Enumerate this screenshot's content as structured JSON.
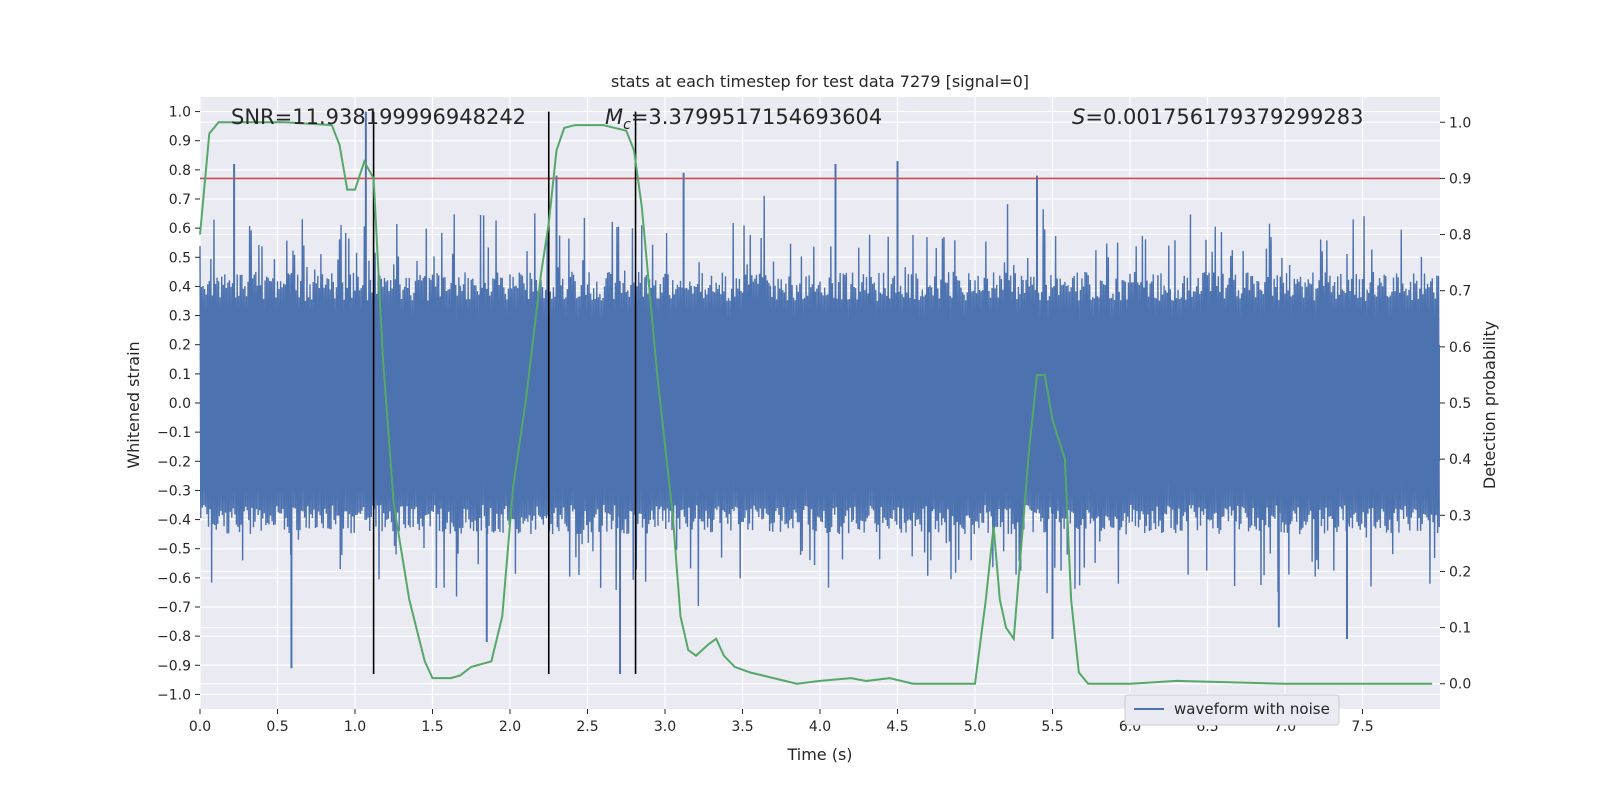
{
  "chart_data": {
    "type": "line",
    "title": "stats at each timestep for test data 7279 [signal=0]",
    "xlabel": "Time (s)",
    "ylabel": "Whitened strain",
    "ylabel_right": "Detection probability",
    "xlim": [
      0,
      8
    ],
    "ylim": [
      -1.05,
      1.05
    ],
    "ylim_right": [
      -0.045,
      1.045
    ],
    "x_ticks": [
      0.0,
      0.5,
      1.0,
      1.5,
      2.0,
      2.5,
      3.0,
      3.5,
      4.0,
      4.5,
      5.0,
      5.5,
      6.0,
      6.5,
      7.0,
      7.5
    ],
    "x_tick_labels": [
      "0.0",
      "0.5",
      "1.0",
      "1.5",
      "2.0",
      "2.5",
      "3.0",
      "3.5",
      "4.0",
      "4.5",
      "5.0",
      "5.5",
      "6.0",
      "6.5",
      "7.0",
      "7.5"
    ],
    "y_ticks": [
      -1.0,
      -0.9,
      -0.8,
      -0.7,
      -0.6,
      -0.5,
      -0.4,
      -0.3,
      -0.2,
      -0.1,
      0.0,
      0.1,
      0.2,
      0.3,
      0.4,
      0.5,
      0.6,
      0.7,
      0.8,
      0.9,
      1.0
    ],
    "y_tick_labels": [
      "−1.0",
      "−0.9",
      "−0.8",
      "−0.7",
      "−0.6",
      "−0.5",
      "−0.4",
      "−0.3",
      "−0.2",
      "−0.1",
      "0.0",
      "0.1",
      "0.2",
      "0.3",
      "0.4",
      "0.5",
      "0.6",
      "0.7",
      "0.8",
      "0.9",
      "1.0"
    ],
    "y_ticks_right": [
      0.0,
      0.1,
      0.2,
      0.3,
      0.4,
      0.5,
      0.6,
      0.7,
      0.8,
      0.9,
      1.0
    ],
    "y_tick_labels_right": [
      "0.0",
      "0.1",
      "0.2",
      "0.3",
      "0.4",
      "0.5",
      "0.6",
      "0.7",
      "0.8",
      "0.9",
      "1.0"
    ],
    "annotations": {
      "snr": "SNR=11.938199996948242",
      "mc_symbol": "M",
      "mc_sub": "c",
      "mc_value": "=3.3799517154693604",
      "s_symbol": "S",
      "s_value": "=0.001756179379299283"
    },
    "threshold_right": 0.9,
    "vertical_lines_x": [
      1.12,
      2.25,
      2.81
    ],
    "series": [
      {
        "name": "waveform with noise",
        "color": "#4c72b0",
        "axis": "left",
        "duration_s": 8,
        "sample_count": 1600,
        "typical_abs_range": [
          0.35,
          0.45
        ],
        "peaks": [
          [
            0.22,
            0.82
          ],
          [
            1.07,
            1.0
          ],
          [
            0.59,
            -0.91
          ],
          [
            2.71,
            -0.93
          ],
          [
            4.5,
            0.83
          ],
          [
            4.1,
            0.82
          ],
          [
            2.3,
            0.78
          ],
          [
            5.4,
            0.78
          ],
          [
            5.5,
            -0.81
          ],
          [
            7.4,
            -0.81
          ],
          [
            6.96,
            -0.77
          ],
          [
            1.85,
            -0.82
          ],
          [
            3.12,
            0.79
          ]
        ]
      },
      {
        "name": "detection probability",
        "color": "#55a868",
        "axis": "right",
        "x": [
          0.0,
          0.06,
          0.12,
          0.3,
          0.55,
          0.85,
          0.9,
          0.95,
          1.0,
          1.06,
          1.12,
          1.18,
          1.25,
          1.35,
          1.45,
          1.5,
          1.55,
          1.62,
          1.68,
          1.75,
          1.88,
          1.95,
          2.02,
          2.1,
          2.2,
          2.25,
          2.3,
          2.35,
          2.42,
          2.5,
          2.6,
          2.75,
          2.8,
          2.85,
          2.95,
          3.05,
          3.1,
          3.15,
          3.2,
          3.28,
          3.33,
          3.38,
          3.45,
          3.55,
          3.7,
          3.85,
          4.0,
          4.2,
          4.3,
          4.45,
          4.6,
          5.0,
          5.07,
          5.12,
          5.16,
          5.2,
          5.25,
          5.35,
          5.4,
          5.45,
          5.5,
          5.58,
          5.62,
          5.67,
          5.73,
          5.8,
          6.0,
          6.3,
          7.0,
          7.5,
          7.95
        ],
        "y": [
          0.8,
          0.98,
          1.0,
          1.0,
          1.0,
          0.995,
          0.96,
          0.88,
          0.88,
          0.93,
          0.9,
          0.58,
          0.32,
          0.15,
          0.04,
          0.01,
          0.01,
          0.01,
          0.015,
          0.03,
          0.04,
          0.12,
          0.35,
          0.5,
          0.73,
          0.82,
          0.95,
          0.99,
          0.995,
          0.995,
          0.995,
          0.985,
          0.95,
          0.85,
          0.55,
          0.3,
          0.12,
          0.06,
          0.05,
          0.07,
          0.08,
          0.05,
          0.03,
          0.02,
          0.01,
          0.0,
          0.005,
          0.01,
          0.005,
          0.01,
          0.0,
          0.0,
          0.15,
          0.28,
          0.15,
          0.1,
          0.08,
          0.42,
          0.55,
          0.55,
          0.47,
          0.4,
          0.15,
          0.02,
          0.0,
          0.0,
          0.0,
          0.005,
          0.0,
          0.0,
          0.0
        ]
      }
    ],
    "legend": {
      "entries": [
        "waveform with noise"
      ],
      "placement": "lower-right"
    }
  }
}
